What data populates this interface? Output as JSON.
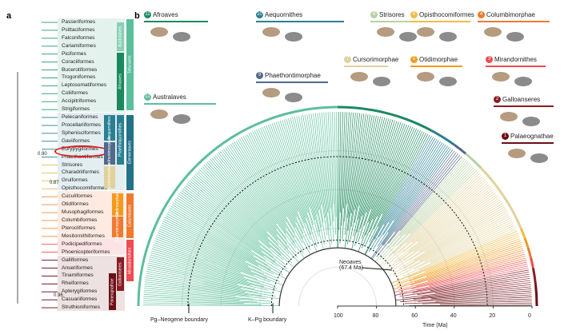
{
  "panel_a": {
    "label": "a",
    "orders": [
      "Passeriformes",
      "Psittaciformes",
      "Falconiformes",
      "Cariamiformes",
      "Piciformes",
      "Coraciiformes",
      "Bucerotiformes",
      "Trogoniformes",
      "Leptosomatiformes",
      "Coliiformes",
      "Accipitriformes",
      "Strigiformes",
      "Pelecaniformes",
      "Procellariiformes",
      "Sphenisciformes",
      "Gaviiformes",
      "Eurypygiformes",
      "Phaethontiformes",
      "Strisores",
      "Charadriiformes",
      "Gruiformes",
      "Opisthocomiformes",
      "Cuculiformes",
      "Otidiformes",
      "Musophagiformes",
      "Columbiformes",
      "Pterocliformes",
      "Mesitornithiformes",
      "Podicipediformes",
      "Phoenicopteriformes",
      "Galliformes",
      "Anseriformes",
      "Tinamiformes",
      "Rheiformes",
      "Apterygiformes",
      "Casuariiformes",
      "Struthioniformes"
    ],
    "highlighted": "Charadriiformes",
    "support_values": [
      "0.90",
      "0.87",
      "0.96"
    ],
    "group_labels": [
      "Australaves",
      "Afroaves",
      "Telluraves",
      "Aequornithes",
      "Phaethontimorphae",
      "Phaethoquornithes",
      "Elementaves",
      "Cursorimorphae",
      "Otidimorphae",
      "Columbimorphae",
      "Columbaves",
      "Mirandornithes",
      "Galloanseres",
      "Palaeognathae"
    ]
  },
  "panel_b": {
    "label": "b",
    "clades": [
      {
        "num": "11",
        "name": "Afroaves",
        "color": "#1a8a5e"
      },
      {
        "num": "12",
        "name": "Australaves",
        "color": "#5cbf9b"
      },
      {
        "num": "10",
        "name": "Aequornithes",
        "color": "#2a7f92"
      },
      {
        "num": "9",
        "name": "Phaethontimorphae",
        "color": "#51698a"
      },
      {
        "num": "8",
        "name": "Strisores",
        "color": "#b7d1a2"
      },
      {
        "num": "7",
        "name": "Cursorimorphae",
        "color": "#e1d19a"
      },
      {
        "num": "6",
        "name": "Opisthocomiformes",
        "color": "#f0bb46"
      },
      {
        "num": "5",
        "name": "Otidimorphae",
        "color": "#f39a1e"
      },
      {
        "num": "4",
        "name": "Columbimorphae",
        "color": "#ef7a30"
      },
      {
        "num": "3",
        "name": "Mirandornithes",
        "color": "#f04b50"
      },
      {
        "num": "2",
        "name": "Galloanseres",
        "color": "#8a1c24"
      },
      {
        "num": "1",
        "name": "Palaeognathae",
        "color": "#6b0f15"
      }
    ],
    "annotations": {
      "neoaves": "Neoaves",
      "neoaves_age": "(67.4 Ma)",
      "pg_neogene": "Pg–Neogene boundary",
      "k_pg": "K–Pg boundary"
    },
    "axis": {
      "title": "Time (Ma)",
      "ticks": [
        "100",
        "80",
        "60",
        "40",
        "20",
        "0"
      ],
      "range": [
        100,
        0
      ]
    },
    "boundaries_ma": {
      "k_pg": 66,
      "pg_neogene": 23
    }
  }
}
